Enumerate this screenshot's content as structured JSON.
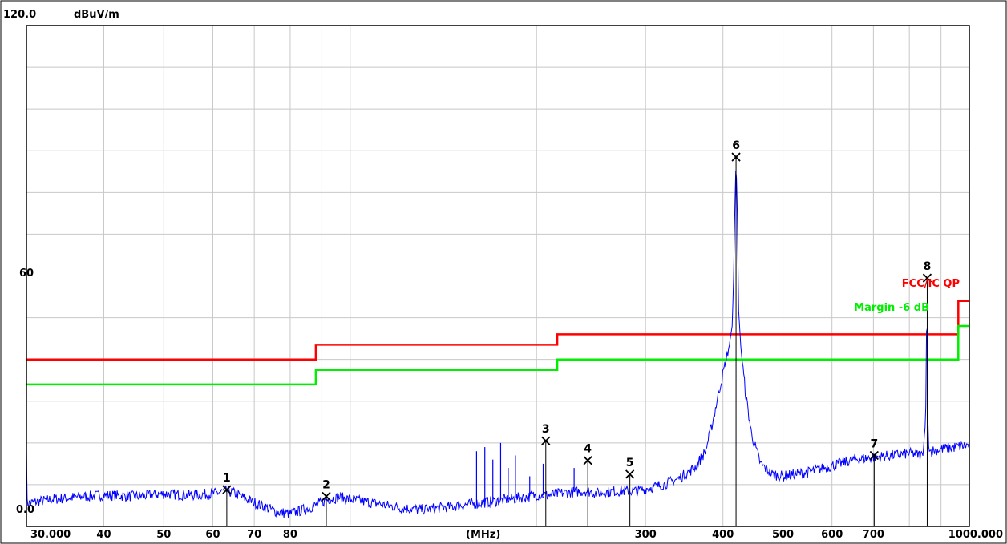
{
  "chart_data": {
    "type": "line",
    "title": "",
    "ylabel_top": "120.0",
    "yunit": "dBuV/m",
    "ylabel_mid": "60",
    "ylabel_bottom": "0.0",
    "xlabel": "(MHz)",
    "xscale": "log",
    "xlim": [
      30,
      1000
    ],
    "ylim": [
      0,
      120
    ],
    "grid": true,
    "x_tick_labels": [
      {
        "value": 30,
        "label": "30.000"
      },
      {
        "value": 40,
        "label": "40"
      },
      {
        "value": 50,
        "label": "50"
      },
      {
        "value": 60,
        "label": "60"
      },
      {
        "value": 70,
        "label": "70"
      },
      {
        "value": 80,
        "label": "80"
      },
      {
        "value": 300,
        "label": "300"
      },
      {
        "value": 400,
        "label": "400"
      },
      {
        "value": 500,
        "label": "500"
      },
      {
        "value": 600,
        "label": "600"
      },
      {
        "value": 700,
        "label": "700"
      },
      {
        "value": 1000,
        "label": "1000.000"
      }
    ],
    "x_grid": [
      40,
      50,
      60,
      70,
      80,
      90,
      100,
      200,
      300,
      400,
      500,
      600,
      700,
      800,
      900
    ],
    "limit_lines": [
      {
        "name": "FCC/IC QP",
        "color": "#ff0000",
        "points": [
          [
            30,
            40
          ],
          [
            88,
            40
          ],
          [
            88,
            43.5
          ],
          [
            216,
            43.5
          ],
          [
            216,
            46
          ],
          [
            960,
            46
          ],
          [
            960,
            54
          ],
          [
            1000,
            54
          ]
        ]
      },
      {
        "name": "Margin -6 dB",
        "color": "#00ee00",
        "points": [
          [
            30,
            34
          ],
          [
            88,
            34
          ],
          [
            88,
            37.5
          ],
          [
            216,
            37.5
          ],
          [
            216,
            40
          ],
          [
            960,
            40
          ],
          [
            960,
            48
          ],
          [
            1000,
            48
          ]
        ]
      }
    ],
    "trace": {
      "color": "#0000ff",
      "points": [
        [
          30,
          5.5
        ],
        [
          33,
          6.5
        ],
        [
          36,
          7.0
        ],
        [
          40,
          7.5
        ],
        [
          45,
          7.2
        ],
        [
          50,
          7.8
        ],
        [
          55,
          7.5
        ],
        [
          60,
          7.8
        ],
        [
          63,
          8.5
        ],
        [
          65,
          8.0
        ],
        [
          68,
          6.5
        ],
        [
          72,
          5.0
        ],
        [
          76,
          3.5
        ],
        [
          80,
          3.0
        ],
        [
          84,
          4.0
        ],
        [
          88,
          5.0
        ],
        [
          92,
          6.5
        ],
        [
          96,
          7.0
        ],
        [
          100,
          6.5
        ],
        [
          110,
          5.5
        ],
        [
          120,
          4.5
        ],
        [
          130,
          4.0
        ],
        [
          140,
          4.5
        ],
        [
          150,
          5.0
        ],
        [
          160,
          5.5
        ],
        [
          170,
          6.0
        ],
        [
          180,
          6.5
        ],
        [
          190,
          7.0
        ],
        [
          200,
          7.5
        ],
        [
          210,
          7.5
        ],
        [
          220,
          8.0
        ],
        [
          240,
          8.5
        ],
        [
          250,
          8.0
        ],
        [
          270,
          8.5
        ],
        [
          290,
          8.5
        ],
        [
          300,
          9.0
        ],
        [
          320,
          10.0
        ],
        [
          340,
          11.5
        ],
        [
          360,
          14.0
        ],
        [
          375,
          18.0
        ],
        [
          385,
          25.0
        ],
        [
          395,
          33.0
        ],
        [
          405,
          40.0
        ],
        [
          410,
          44.0
        ],
        [
          414,
          48.0
        ],
        [
          416,
          58.0
        ],
        [
          418,
          75.0
        ],
        [
          420,
          88.0
        ],
        [
          422,
          75.0
        ],
        [
          424,
          52.0
        ],
        [
          428,
          42.0
        ],
        [
          435,
          32.0
        ],
        [
          445,
          22.0
        ],
        [
          460,
          15.0
        ],
        [
          480,
          12.5
        ],
        [
          500,
          12.0
        ],
        [
          550,
          13.0
        ],
        [
          600,
          14.5
        ],
        [
          650,
          16.0
        ],
        [
          700,
          16.5
        ],
        [
          750,
          17.0
        ],
        [
          800,
          17.5
        ],
        [
          840,
          17.0
        ],
        [
          850,
          25.0
        ],
        [
          852,
          38.0
        ],
        [
          854,
          58.0
        ],
        [
          856,
          40.0
        ],
        [
          858,
          20.0
        ],
        [
          862,
          18.0
        ],
        [
          900,
          18.5
        ],
        [
          950,
          19.0
        ],
        [
          1000,
          19.5
        ]
      ],
      "spikes": [
        [
          160,
          18
        ],
        [
          165,
          19
        ],
        [
          170,
          16
        ],
        [
          175,
          20
        ],
        [
          180,
          14
        ],
        [
          185,
          17
        ],
        [
          195,
          12
        ],
        [
          205,
          15
        ],
        [
          230,
          14
        ]
      ]
    },
    "markers": [
      {
        "label": "1",
        "freq": 63.2,
        "level": 8.8
      },
      {
        "label": "2",
        "freq": 91.5,
        "level": 7.2
      },
      {
        "label": "3",
        "freq": 207.0,
        "level": 20.5
      },
      {
        "label": "4",
        "freq": 242.0,
        "level": 15.8
      },
      {
        "label": "5",
        "freq": 283.0,
        "level": 12.5
      },
      {
        "label": "6",
        "freq": 420.0,
        "level": 88.5
      },
      {
        "label": "7",
        "freq": 702.0,
        "level": 17.0
      },
      {
        "label": "8",
        "freq": 855.0,
        "level": 59.5
      }
    ]
  }
}
